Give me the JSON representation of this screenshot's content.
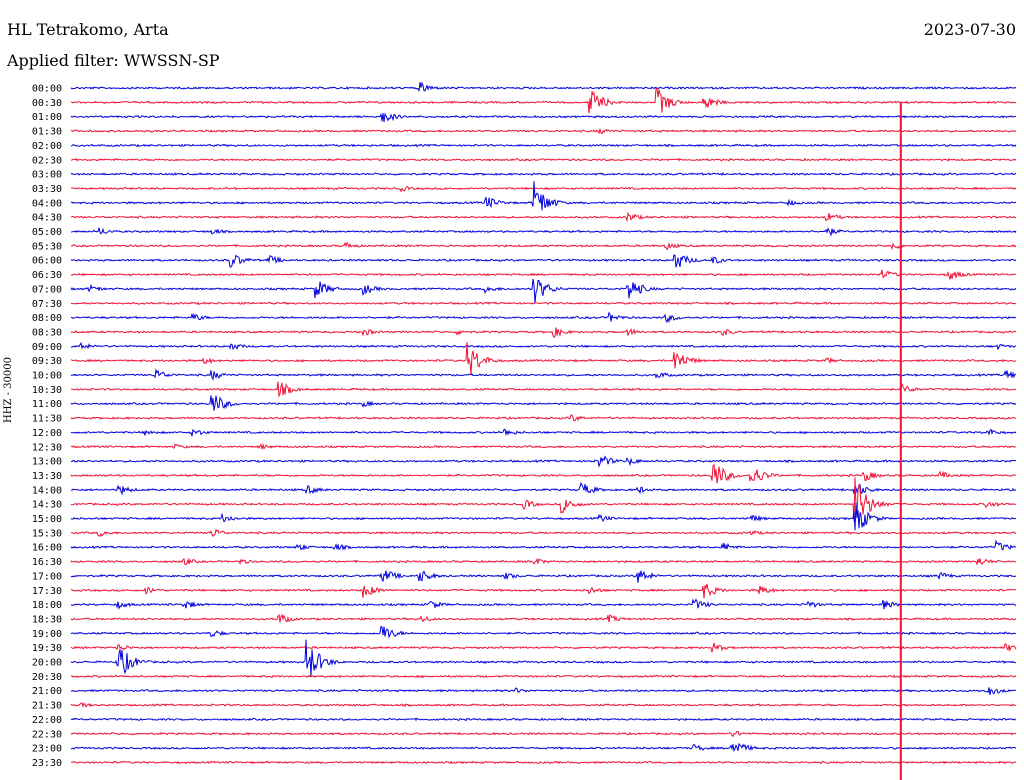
{
  "header": {
    "station": "HL Tetrakomo, Arta",
    "date": "2023-07-30",
    "filter": "Applied filter: WWSSN-SP"
  },
  "colors": {
    "trace_odd": "#0000dd",
    "trace_even": "#ee1133"
  },
  "chart_data": {
    "type": "line",
    "title": "HL Tetrakomo, Arta",
    "subtitle": "Applied filter: WWSSN-SP",
    "date": "2023-07-30",
    "ylabel": "HHZ - 30000",
    "row_labels": [
      "00:00",
      "00:30",
      "01:00",
      "01:30",
      "02:00",
      "02:30",
      "03:00",
      "03:30",
      "04:00",
      "04:30",
      "05:00",
      "05:30",
      "06:00",
      "06:30",
      "07:00",
      "07:30",
      "08:00",
      "08:30",
      "09:00",
      "09:30",
      "10:00",
      "10:30",
      "11:00",
      "11:30",
      "12:00",
      "12:30",
      "13:00",
      "13:30",
      "14:00",
      "14:30",
      "15:00",
      "15:30",
      "16:00",
      "16:30",
      "17:00",
      "17:30",
      "18:00",
      "18:30",
      "19:00",
      "19:30",
      "20:00",
      "20:30",
      "21:00",
      "21:30",
      "22:00",
      "22:30",
      "23:00",
      "23:30"
    ],
    "row_minutes": 30,
    "line_colors": [
      "blue",
      "red"
    ],
    "events": [
      {
        "row": 0,
        "t": 0.37,
        "amp": 6
      },
      {
        "row": 1,
        "t": 0.55,
        "amp": 14
      },
      {
        "row": 1,
        "t": 0.62,
        "amp": 16
      },
      {
        "row": 1,
        "t": 0.67,
        "amp": 8
      },
      {
        "row": 2,
        "t": 0.33,
        "amp": 7
      },
      {
        "row": 3,
        "t": 0.56,
        "amp": 3
      },
      {
        "row": 7,
        "t": 0.35,
        "amp": 3
      },
      {
        "row": 8,
        "t": 0.44,
        "amp": 7
      },
      {
        "row": 8,
        "t": 0.49,
        "amp": 22
      },
      {
        "row": 8,
        "t": 0.76,
        "amp": 3
      },
      {
        "row": 9,
        "t": 0.59,
        "amp": 5
      },
      {
        "row": 9,
        "t": 0.8,
        "amp": 5
      },
      {
        "row": 10,
        "t": 0.03,
        "amp": 4
      },
      {
        "row": 10,
        "t": 0.15,
        "amp": 3
      },
      {
        "row": 10,
        "t": 0.8,
        "amp": 5
      },
      {
        "row": 11,
        "t": 0.29,
        "amp": 4
      },
      {
        "row": 11,
        "t": 0.63,
        "amp": 4
      },
      {
        "row": 11,
        "t": 0.87,
        "amp": 4
      },
      {
        "row": 12,
        "t": 0.17,
        "amp": 8
      },
      {
        "row": 12,
        "t": 0.21,
        "amp": 5
      },
      {
        "row": 12,
        "t": 0.64,
        "amp": 10
      },
      {
        "row": 12,
        "t": 0.68,
        "amp": 4
      },
      {
        "row": 13,
        "t": 0.86,
        "amp": 5
      },
      {
        "row": 13,
        "t": 0.93,
        "amp": 6
      },
      {
        "row": 14,
        "t": 0.02,
        "amp": 4
      },
      {
        "row": 14,
        "t": 0.26,
        "amp": 10
      },
      {
        "row": 14,
        "t": 0.31,
        "amp": 6
      },
      {
        "row": 14,
        "t": 0.44,
        "amp": 4
      },
      {
        "row": 14,
        "t": 0.49,
        "amp": 16
      },
      {
        "row": 14,
        "t": 0.59,
        "amp": 13
      },
      {
        "row": 16,
        "t": 0.13,
        "amp": 4
      },
      {
        "row": 16,
        "t": 0.57,
        "amp": 5
      },
      {
        "row": 16,
        "t": 0.63,
        "amp": 5
      },
      {
        "row": 17,
        "t": 0.31,
        "amp": 4
      },
      {
        "row": 17,
        "t": 0.41,
        "amp": 3
      },
      {
        "row": 17,
        "t": 0.51,
        "amp": 6
      },
      {
        "row": 17,
        "t": 0.59,
        "amp": 4
      },
      {
        "row": 17,
        "t": 0.69,
        "amp": 4
      },
      {
        "row": 18,
        "t": 0.01,
        "amp": 4
      },
      {
        "row": 18,
        "t": 0.17,
        "amp": 4
      },
      {
        "row": 18,
        "t": 0.98,
        "amp": 3
      },
      {
        "row": 19,
        "t": 0.14,
        "amp": 4
      },
      {
        "row": 19,
        "t": 0.42,
        "amp": 20
      },
      {
        "row": 19,
        "t": 0.64,
        "amp": 12
      },
      {
        "row": 19,
        "t": 0.8,
        "amp": 3
      },
      {
        "row": 20,
        "t": 0.09,
        "amp": 6
      },
      {
        "row": 20,
        "t": 0.15,
        "amp": 5
      },
      {
        "row": 20,
        "t": 0.62,
        "amp": 4
      },
      {
        "row": 20,
        "t": 0.99,
        "amp": 5
      },
      {
        "row": 21,
        "t": 0.22,
        "amp": 9
      },
      {
        "row": 21,
        "t": 0.88,
        "amp": 5
      },
      {
        "row": 22,
        "t": 0.15,
        "amp": 12
      },
      {
        "row": 22,
        "t": 0.31,
        "amp": 3
      },
      {
        "row": 23,
        "t": 0.53,
        "amp": 4
      },
      {
        "row": 24,
        "t": 0.08,
        "amp": 3
      },
      {
        "row": 24,
        "t": 0.13,
        "amp": 4
      },
      {
        "row": 24,
        "t": 0.46,
        "amp": 4
      },
      {
        "row": 24,
        "t": 0.97,
        "amp": 4
      },
      {
        "row": 25,
        "t": 0.11,
        "amp": 3
      },
      {
        "row": 25,
        "t": 0.2,
        "amp": 3
      },
      {
        "row": 26,
        "t": 0.56,
        "amp": 7
      },
      {
        "row": 26,
        "t": 0.59,
        "amp": 4
      },
      {
        "row": 27,
        "t": 0.68,
        "amp": 16
      },
      {
        "row": 27,
        "t": 0.72,
        "amp": 12
      },
      {
        "row": 27,
        "t": 0.84,
        "amp": 6
      },
      {
        "row": 27,
        "t": 0.92,
        "amp": 4
      },
      {
        "row": 28,
        "t": 0.05,
        "amp": 6
      },
      {
        "row": 28,
        "t": 0.25,
        "amp": 5
      },
      {
        "row": 28,
        "t": 0.54,
        "amp": 8
      },
      {
        "row": 28,
        "t": 0.6,
        "amp": 4
      },
      {
        "row": 28,
        "t": 0.83,
        "amp": 8
      },
      {
        "row": 29,
        "t": 0.48,
        "amp": 5
      },
      {
        "row": 29,
        "t": 0.52,
        "amp": 9
      },
      {
        "row": 29,
        "t": 0.83,
        "amp": 30
      },
      {
        "row": 29,
        "t": 0.97,
        "amp": 4
      },
      {
        "row": 30,
        "t": 0.16,
        "amp": 5
      },
      {
        "row": 30,
        "t": 0.56,
        "amp": 4
      },
      {
        "row": 30,
        "t": 0.72,
        "amp": 4
      },
      {
        "row": 30,
        "t": 0.83,
        "amp": 18
      },
      {
        "row": 31,
        "t": 0.03,
        "amp": 4
      },
      {
        "row": 31,
        "t": 0.15,
        "amp": 5
      },
      {
        "row": 31,
        "t": 0.72,
        "amp": 3
      },
      {
        "row": 32,
        "t": 0.24,
        "amp": 4
      },
      {
        "row": 32,
        "t": 0.28,
        "amp": 4
      },
      {
        "row": 32,
        "t": 0.69,
        "amp": 5
      },
      {
        "row": 32,
        "t": 0.98,
        "amp": 6
      },
      {
        "row": 33,
        "t": 0.12,
        "amp": 4
      },
      {
        "row": 33,
        "t": 0.18,
        "amp": 3
      },
      {
        "row": 33,
        "t": 0.49,
        "amp": 4
      },
      {
        "row": 33,
        "t": 0.96,
        "amp": 5
      },
      {
        "row": 34,
        "t": 0.33,
        "amp": 8
      },
      {
        "row": 34,
        "t": 0.37,
        "amp": 7
      },
      {
        "row": 34,
        "t": 0.46,
        "amp": 4
      },
      {
        "row": 34,
        "t": 0.6,
        "amp": 8
      },
      {
        "row": 34,
        "t": 0.92,
        "amp": 4
      },
      {
        "row": 35,
        "t": 0.08,
        "amp": 4
      },
      {
        "row": 35,
        "t": 0.31,
        "amp": 8
      },
      {
        "row": 35,
        "t": 0.55,
        "amp": 4
      },
      {
        "row": 35,
        "t": 0.67,
        "amp": 9
      },
      {
        "row": 35,
        "t": 0.73,
        "amp": 5
      },
      {
        "row": 36,
        "t": 0.05,
        "amp": 4
      },
      {
        "row": 36,
        "t": 0.12,
        "amp": 5
      },
      {
        "row": 36,
        "t": 0.38,
        "amp": 5
      },
      {
        "row": 36,
        "t": 0.66,
        "amp": 6
      },
      {
        "row": 36,
        "t": 0.78,
        "amp": 4
      },
      {
        "row": 36,
        "t": 0.86,
        "amp": 5
      },
      {
        "row": 37,
        "t": 0.22,
        "amp": 6
      },
      {
        "row": 37,
        "t": 0.37,
        "amp": 4
      },
      {
        "row": 37,
        "t": 0.57,
        "amp": 4
      },
      {
        "row": 38,
        "t": 0.15,
        "amp": 4
      },
      {
        "row": 38,
        "t": 0.33,
        "amp": 9
      },
      {
        "row": 39,
        "t": 0.05,
        "amp": 4
      },
      {
        "row": 39,
        "t": 0.68,
        "amp": 5
      },
      {
        "row": 39,
        "t": 0.99,
        "amp": 4
      },
      {
        "row": 40,
        "t": 0.05,
        "amp": 20
      },
      {
        "row": 40,
        "t": 0.25,
        "amp": 24
      },
      {
        "row": 42,
        "t": 0.47,
        "amp": 3
      },
      {
        "row": 42,
        "t": 0.97,
        "amp": 6
      },
      {
        "row": 43,
        "t": 0.01,
        "amp": 3
      },
      {
        "row": 45,
        "t": 0.7,
        "amp": 4
      },
      {
        "row": 46,
        "t": 0.66,
        "amp": 4
      },
      {
        "row": 46,
        "t": 0.7,
        "amp": 10
      }
    ],
    "spike": {
      "t": 0.84,
      "from_row": 1,
      "to_row": 47
    }
  }
}
